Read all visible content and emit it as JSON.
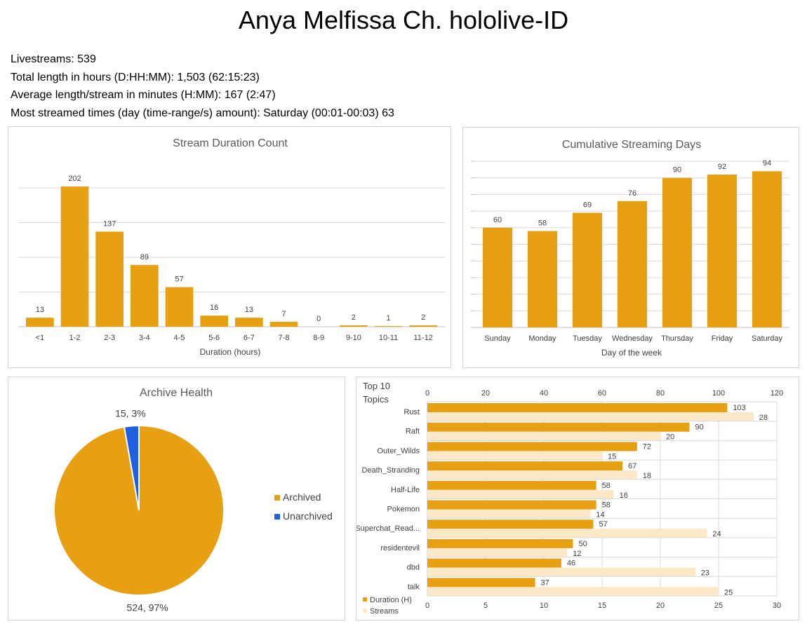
{
  "page": {
    "title": "Anya Melfissa Ch. hololive-ID",
    "stats": [
      "Livestreams: 539",
      "Total length in hours (D:HH:MM): 1,503 (62:15:23)",
      "Average length/stream in minutes (H:MM): 167 (2:47)",
      "Most streamed times (day (time-range/s) amount): Saturday (00:01-00:03) 63"
    ]
  },
  "colors": {
    "primary": "#E6A012",
    "secondary": "#FBE8C6",
    "unarchived": "#1F5FE0",
    "grid": "#d9d9d9"
  },
  "chart_data": [
    {
      "id": "duration",
      "type": "bar",
      "title": "Stream Duration Count",
      "xlabel": "Duration (hours)",
      "ylabel": "",
      "categories": [
        "<1",
        "1-2",
        "2-3",
        "3-4",
        "4-5",
        "5-6",
        "6-7",
        "7-8",
        "8-9",
        "9-10",
        "10-11",
        "11-12"
      ],
      "values": [
        13,
        202,
        137,
        89,
        57,
        16,
        13,
        7,
        0,
        2,
        1,
        2
      ],
      "ylim": [
        0,
        200
      ],
      "grid": true
    },
    {
      "id": "days",
      "type": "bar",
      "title": "Cumulative Streaming Days",
      "xlabel": "Day of the week",
      "ylabel": "",
      "categories": [
        "Sunday",
        "Monday",
        "Tuesday",
        "Wednesday",
        "Thursday",
        "Friday",
        "Saturday"
      ],
      "values": [
        60,
        58,
        69,
        76,
        90,
        92,
        94
      ],
      "ylim": [
        0,
        100
      ],
      "grid": true
    },
    {
      "id": "archive",
      "type": "pie",
      "title": "Archive Health",
      "slices": [
        {
          "name": "Archived",
          "value": 524,
          "percent": 97,
          "label": "524, 97%"
        },
        {
          "name": "Unarchived",
          "value": 15,
          "percent": 3,
          "label": "15, 3%"
        }
      ],
      "legend": "right"
    },
    {
      "id": "topics",
      "type": "bar",
      "orientation": "horizontal",
      "title": "Top 10 Topics",
      "categories": [
        "Rust",
        "Raft",
        "Outer_Wilds",
        "Death_Stranding",
        "Half-Life",
        "Pokemon",
        "Superchat_Read...",
        "residentevil",
        "dbd",
        "talk"
      ],
      "series": [
        {
          "name": "Duration (H)",
          "axis": "top",
          "values": [
            103,
            90,
            72,
            67,
            58,
            58,
            57,
            50,
            46,
            37
          ]
        },
        {
          "name": "Streams",
          "axis": "bottom",
          "values": [
            28,
            20,
            15,
            18,
            16,
            14,
            24,
            12,
            23,
            25
          ]
        }
      ],
      "xlim_top": [
        0,
        120
      ],
      "xticks_top": [
        0,
        20,
        40,
        60,
        80,
        100,
        120
      ],
      "xlim_bottom": [
        0,
        30
      ],
      "xticks_bottom": [
        0,
        5,
        10,
        15,
        20,
        25,
        30
      ],
      "legend": "bottom-left",
      "grid": true
    }
  ]
}
